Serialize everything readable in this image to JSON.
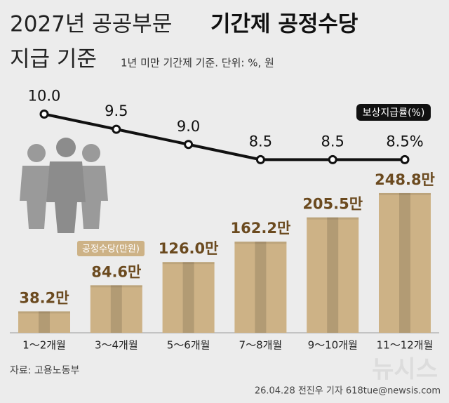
{
  "chart_data": {
    "type": "bar",
    "title": [
      "2027년 공공부문",
      "기간제 공정수당",
      "지급 기준"
    ],
    "subtitle": "1년 미만 기간제 기준. 단위: %, 원",
    "categories": [
      "1～2개월",
      "3～4개월",
      "5～6개월",
      "7～8개월",
      "9～10개월",
      "11～12개월"
    ],
    "series": [
      {
        "name": "공정수당(만원)",
        "type": "bar",
        "color": "#cdb286",
        "values": [
          38.2,
          84.6,
          126.0,
          162.2,
          205.5,
          248.8
        ],
        "value_labels": [
          "38.2만",
          "84.6만",
          "126.0만",
          "162.2만",
          "205.5만",
          "248.8만"
        ]
      },
      {
        "name": "보상지급률(%)",
        "type": "line",
        "axis": "y2",
        "color": "#111111",
        "values": [
          10.0,
          9.5,
          9.0,
          8.5,
          8.5,
          8.5
        ],
        "value_labels": [
          "10.0",
          "9.5",
          "9.0",
          "8.5",
          "8.5",
          "8.5%"
        ]
      }
    ],
    "ylim": [
      0,
      250
    ],
    "y2lim": [
      8,
      12
    ],
    "source": "자료: 고용노동부",
    "credit": "26.04.28 전진우 기자 618tue@newsis.com",
    "watermark": "뉴시스"
  }
}
